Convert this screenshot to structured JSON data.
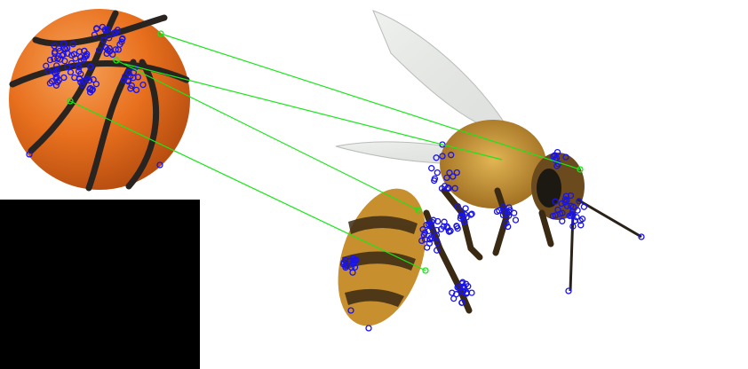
{
  "scene": {
    "left_image_subject": "basketball",
    "right_image_subject": "honey bee",
    "colors": {
      "background": "#ffffff",
      "padding": "#000000",
      "keypoint": "#1a14e6",
      "match_line": "#19e619",
      "ball_orange": "#e8701e",
      "ball_seam": "#2a2420",
      "bee_amber": "#c8902a",
      "bee_dark": "#3a2a14",
      "wing": "#d9dcd8"
    },
    "match_count": 4
  }
}
